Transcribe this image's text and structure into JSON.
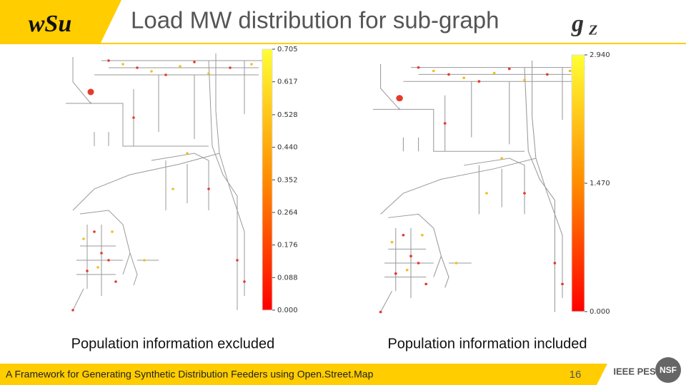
{
  "header": {
    "logo": "wSu",
    "title": "Load MW distribution for sub-graph",
    "title_math": {
      "base": "g",
      "subscript": "Z"
    }
  },
  "figures": [
    {
      "caption": "Population information excluded",
      "colorbar": {
        "ylim": [
          0,
          0.705
        ],
        "yticks": [
          {
            "value": 0,
            "label": "0.000"
          },
          0.088,
          0.176,
          0.264,
          0.352,
          {
            "value": 0.44,
            "label": "0.440"
          },
          0.528,
          0.617,
          0.705
        ],
        "colors": [
          "#ff0000",
          "#ff8c00",
          "#ffff33"
        ]
      }
    },
    {
      "caption": "Population information included",
      "colorbar": {
        "ylim": [
          0,
          2.94
        ],
        "yticks": [
          {
            "value": 0,
            "label": "0.000"
          },
          {
            "value": 1.47,
            "label": "1.470"
          },
          {
            "value": 2.94,
            "label": "2.940"
          }
        ],
        "colors": [
          "#ff0000",
          "#ff8c00",
          "#ffff33"
        ]
      }
    }
  ],
  "footer": {
    "text": "A Framework for Generating Synthetic Distribution Feeders using Open.Street.Map",
    "page": "16",
    "logos": [
      "IEEE PES",
      "NSF"
    ]
  }
}
